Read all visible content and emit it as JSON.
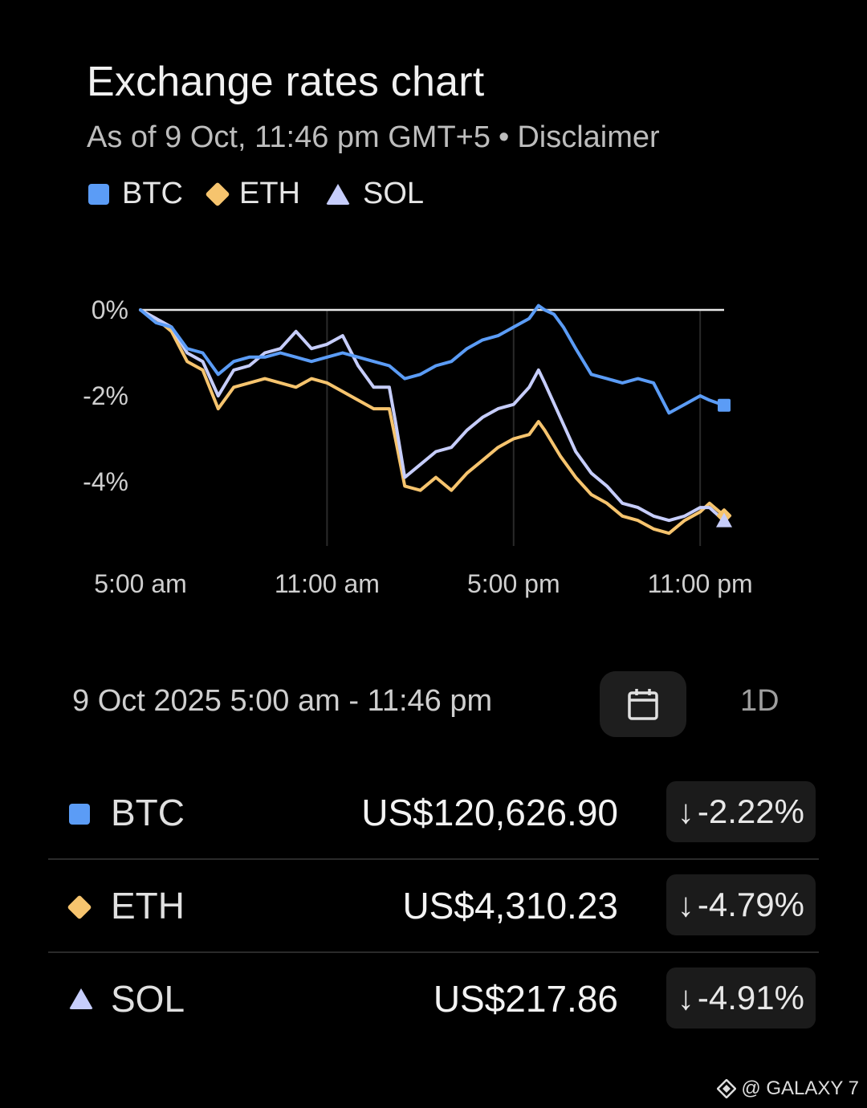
{
  "header": {
    "title": "Exchange rates chart",
    "subtitle": "As of 9 Oct, 11:46 pm GMT+5",
    "separator": "•",
    "disclaimer": "Disclaimer"
  },
  "legend": [
    {
      "label": "BTC",
      "color": "#5b9cf6",
      "shape": "square"
    },
    {
      "label": "ETH",
      "color": "#f6c46e",
      "shape": "diamond"
    },
    {
      "label": "SOL",
      "color": "#c6cdfb",
      "shape": "triangle"
    }
  ],
  "chart_data": {
    "type": "line",
    "ylim": [
      -5.5,
      0.3
    ],
    "y_ticks": [
      0,
      -2,
      -4
    ],
    "y_tick_labels": [
      "0%",
      "-2%",
      "-4%"
    ],
    "x_range_hours": [
      5,
      23.77
    ],
    "x_ticks": [
      5,
      11,
      17,
      23
    ],
    "x_tick_labels": [
      "5:00 am",
      "11:00 am",
      "5:00 pm",
      "11:00 pm"
    ],
    "baseline": 0,
    "series": [
      {
        "name": "BTC",
        "color": "#5b9cf6",
        "x": [
          5,
          5.5,
          6,
          6.5,
          7,
          7.5,
          8,
          8.5,
          9,
          9.5,
          10,
          10.5,
          11,
          11.5,
          12,
          12.5,
          13,
          13.5,
          14,
          14.5,
          15,
          15.5,
          16,
          16.5,
          17,
          17.5,
          17.8,
          18,
          18.3,
          18.6,
          19,
          19.5,
          20,
          20.5,
          21,
          21.5,
          22,
          22.5,
          23,
          23.3,
          23.77
        ],
        "y": [
          0,
          -0.3,
          -0.4,
          -0.9,
          -1.0,
          -1.5,
          -1.2,
          -1.1,
          -1.1,
          -1.0,
          -1.1,
          -1.2,
          -1.1,
          -1.0,
          -1.1,
          -1.2,
          -1.3,
          -1.6,
          -1.5,
          -1.3,
          -1.2,
          -0.9,
          -0.7,
          -0.6,
          -0.4,
          -0.2,
          0.1,
          0.0,
          -0.1,
          -0.4,
          -0.9,
          -1.5,
          -1.6,
          -1.7,
          -1.6,
          -1.7,
          -2.4,
          -2.2,
          -2.0,
          -2.1,
          -2.22
        ]
      },
      {
        "name": "ETH",
        "color": "#f6c46e",
        "x": [
          5,
          5.5,
          6,
          6.5,
          7,
          7.5,
          8,
          8.5,
          9,
          9.5,
          10,
          10.5,
          11,
          11.5,
          12,
          12.5,
          13,
          13.2,
          13.5,
          14,
          14.5,
          15,
          15.5,
          16,
          16.5,
          17,
          17.5,
          17.8,
          18,
          18.5,
          19,
          19.5,
          20,
          20.5,
          21,
          21.5,
          22,
          22.5,
          23,
          23.3,
          23.77
        ],
        "y": [
          0,
          -0.2,
          -0.5,
          -1.2,
          -1.4,
          -2.3,
          -1.8,
          -1.7,
          -1.6,
          -1.7,
          -1.8,
          -1.6,
          -1.7,
          -1.9,
          -2.1,
          -2.3,
          -2.3,
          -3.0,
          -4.1,
          -4.2,
          -3.9,
          -4.2,
          -3.8,
          -3.5,
          -3.2,
          -3.0,
          -2.9,
          -2.6,
          -2.8,
          -3.4,
          -3.9,
          -4.3,
          -4.5,
          -4.8,
          -4.9,
          -5.1,
          -5.2,
          -4.9,
          -4.7,
          -4.5,
          -4.79
        ]
      },
      {
        "name": "SOL",
        "color": "#c6cdfb",
        "x": [
          5,
          5.5,
          6,
          6.5,
          7,
          7.5,
          8,
          8.5,
          9,
          9.5,
          10,
          10.5,
          11,
          11.5,
          12,
          12.5,
          13,
          13.2,
          13.5,
          14,
          14.5,
          15,
          15.5,
          16,
          16.5,
          17,
          17.5,
          17.8,
          18,
          18.5,
          19,
          19.5,
          20,
          20.5,
          21,
          21.5,
          22,
          22.5,
          23,
          23.3,
          23.77
        ],
        "y": [
          0,
          -0.2,
          -0.4,
          -1.0,
          -1.2,
          -2.0,
          -1.4,
          -1.3,
          -1.0,
          -0.9,
          -0.5,
          -0.9,
          -0.8,
          -0.6,
          -1.3,
          -1.8,
          -1.8,
          -2.6,
          -3.9,
          -3.6,
          -3.3,
          -3.2,
          -2.8,
          -2.5,
          -2.3,
          -2.2,
          -1.8,
          -1.4,
          -1.7,
          -2.5,
          -3.3,
          -3.8,
          -4.1,
          -4.5,
          -4.6,
          -4.8,
          -4.9,
          -4.8,
          -4.6,
          -4.6,
          -4.91
        ]
      }
    ]
  },
  "range_bar": {
    "range_label": "9 Oct 2025 5:00 am - 11:46 pm",
    "calendar_icon": "calendar-icon",
    "period_label": "1D"
  },
  "rates": [
    {
      "symbol": "BTC",
      "price": "US$120,626.90",
      "change": "-2.22%",
      "arrow": "↓",
      "color": "#5b9cf6",
      "shape": "square"
    },
    {
      "symbol": "ETH",
      "price": "US$4,310.23",
      "change": "-4.79%",
      "arrow": "↓",
      "color": "#f6c46e",
      "shape": "diamond"
    },
    {
      "symbol": "SOL",
      "price": "US$217.86",
      "change": "-4.91%",
      "arrow": "↓",
      "color": "#c6cdfb",
      "shape": "triangle"
    }
  ],
  "watermark": {
    "text": "@ GALAXY 7"
  }
}
